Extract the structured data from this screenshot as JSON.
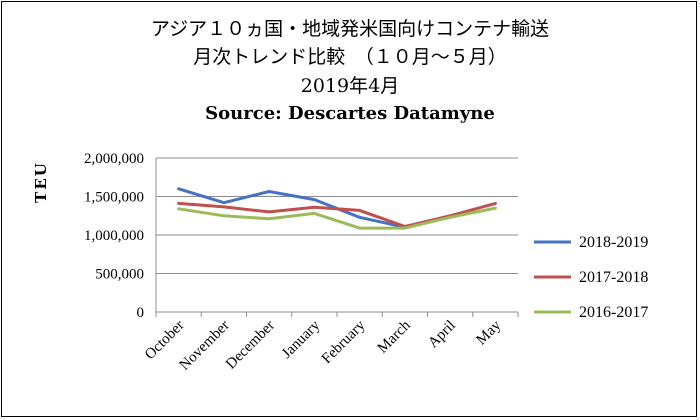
{
  "chart_data": {
    "type": "line",
    "title": "アジア１０ヵ国・地域発米国向けコンテナ輸送",
    "subtitle": "月次トレンド比較　（１０月～５月）",
    "date": "2019年4月",
    "source": "Source: Descartes  Datamyne",
    "ylabel": "TEU",
    "xlabel": "",
    "ylim": [
      0,
      2000000
    ],
    "yticks": [
      0,
      500000,
      1000000,
      1500000,
      2000000
    ],
    "ytick_labels": [
      "0",
      "500,000",
      "1,000,000",
      "1,500,000",
      "2,000,000"
    ],
    "grid": "horizontal",
    "legend_position": "right",
    "categories": [
      "October",
      "November",
      "December",
      "January",
      "February",
      "March",
      "April",
      "May"
    ],
    "series": [
      {
        "name": "2018-2019",
        "color": "#4472C4",
        "values": [
          1600000,
          1420000,
          1565000,
          1460000,
          1230000,
          1100000,
          1250000,
          null
        ]
      },
      {
        "name": "2017-2018",
        "color": "#C0504D",
        "values": [
          1410000,
          1365000,
          1300000,
          1360000,
          1320000,
          1110000,
          1250000,
          1410000
        ]
      },
      {
        "name": "2016-2017",
        "color": "#9BBB59",
        "values": [
          1340000,
          1250000,
          1210000,
          1280000,
          1090000,
          1090000,
          1230000,
          1350000
        ]
      }
    ]
  }
}
